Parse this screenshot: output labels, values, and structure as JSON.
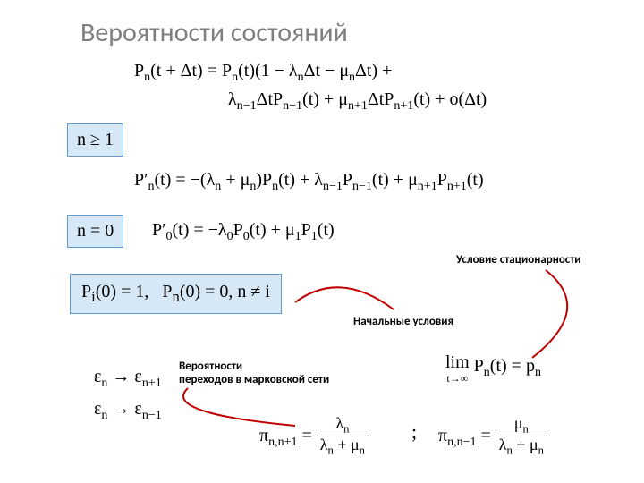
{
  "title": "Вероятности состояний",
  "eq1_line1": "P<sub>n</sub>(t + Δt) = P<sub>n</sub>(t)(1 − λ<sub>n</sub>Δt − μ<sub>n</sub>Δt) +",
  "eq1_line2": "λ<sub>n−1</sub>ΔtP<sub>n−1</sub>(t) + μ<sub>n+1</sub>ΔtP<sub>n+1</sub>(t) + o(Δt)",
  "box_n_ge_1": "n ≥ 1",
  "eq2": "P′<sub>n</sub>(t) = −(λ<sub>n</sub> + μ<sub>n</sub>)P<sub>n</sub>(t) + λ<sub>n−1</sub>P<sub>n−1</sub>(t) + μ<sub>n+1</sub>P<sub>n+1</sub>(t)",
  "box_n_0": "n = 0",
  "eq3": "P′<sub>0</sub>(t) = −λ<sub>0</sub>P<sub>0</sub>(t) + μ<sub>1</sub>P<sub>1</sub>(t)",
  "box_init": "P<sub>i</sub>(0) = 1,&nbsp;&nbsp;&nbsp;P<sub>n</sub>(0) = 0, n ≠ i",
  "label_stationary": "Условие стационарности",
  "label_initial": "Начальные условия",
  "label_transitions": "Вероятности<br>переходов в марковской сети",
  "eq_trans1": "ε<sub>n</sub> → ε<sub>n+1</sub>",
  "eq_trans2": "ε<sub>n</sub> → ε<sub>n−1</sub>",
  "limit_top": "lim",
  "limit_bottom": "t→∞",
  "limit_rest": "P<sub>n</sub>(t) = p<sub>n</sub>",
  "pi1_lhs": "π<sub>n,n+1</sub> =",
  "pi1_num": "λ<sub>n</sub>",
  "pi1_den": "λ<sub>n</sub> + μ<sub>n</sub>",
  "pi_sep": ";",
  "pi2_lhs": "π<sub>n,n−1</sub> =",
  "pi2_num": "μ<sub>n</sub>",
  "pi2_den": "λ<sub>n</sub> + μ<sub>n</sub>",
  "colors": {
    "title": "#7f7f7f",
    "box_fill": "#d6e8f5",
    "box_border": "#5a9bd5",
    "arrow": "#c00000"
  }
}
